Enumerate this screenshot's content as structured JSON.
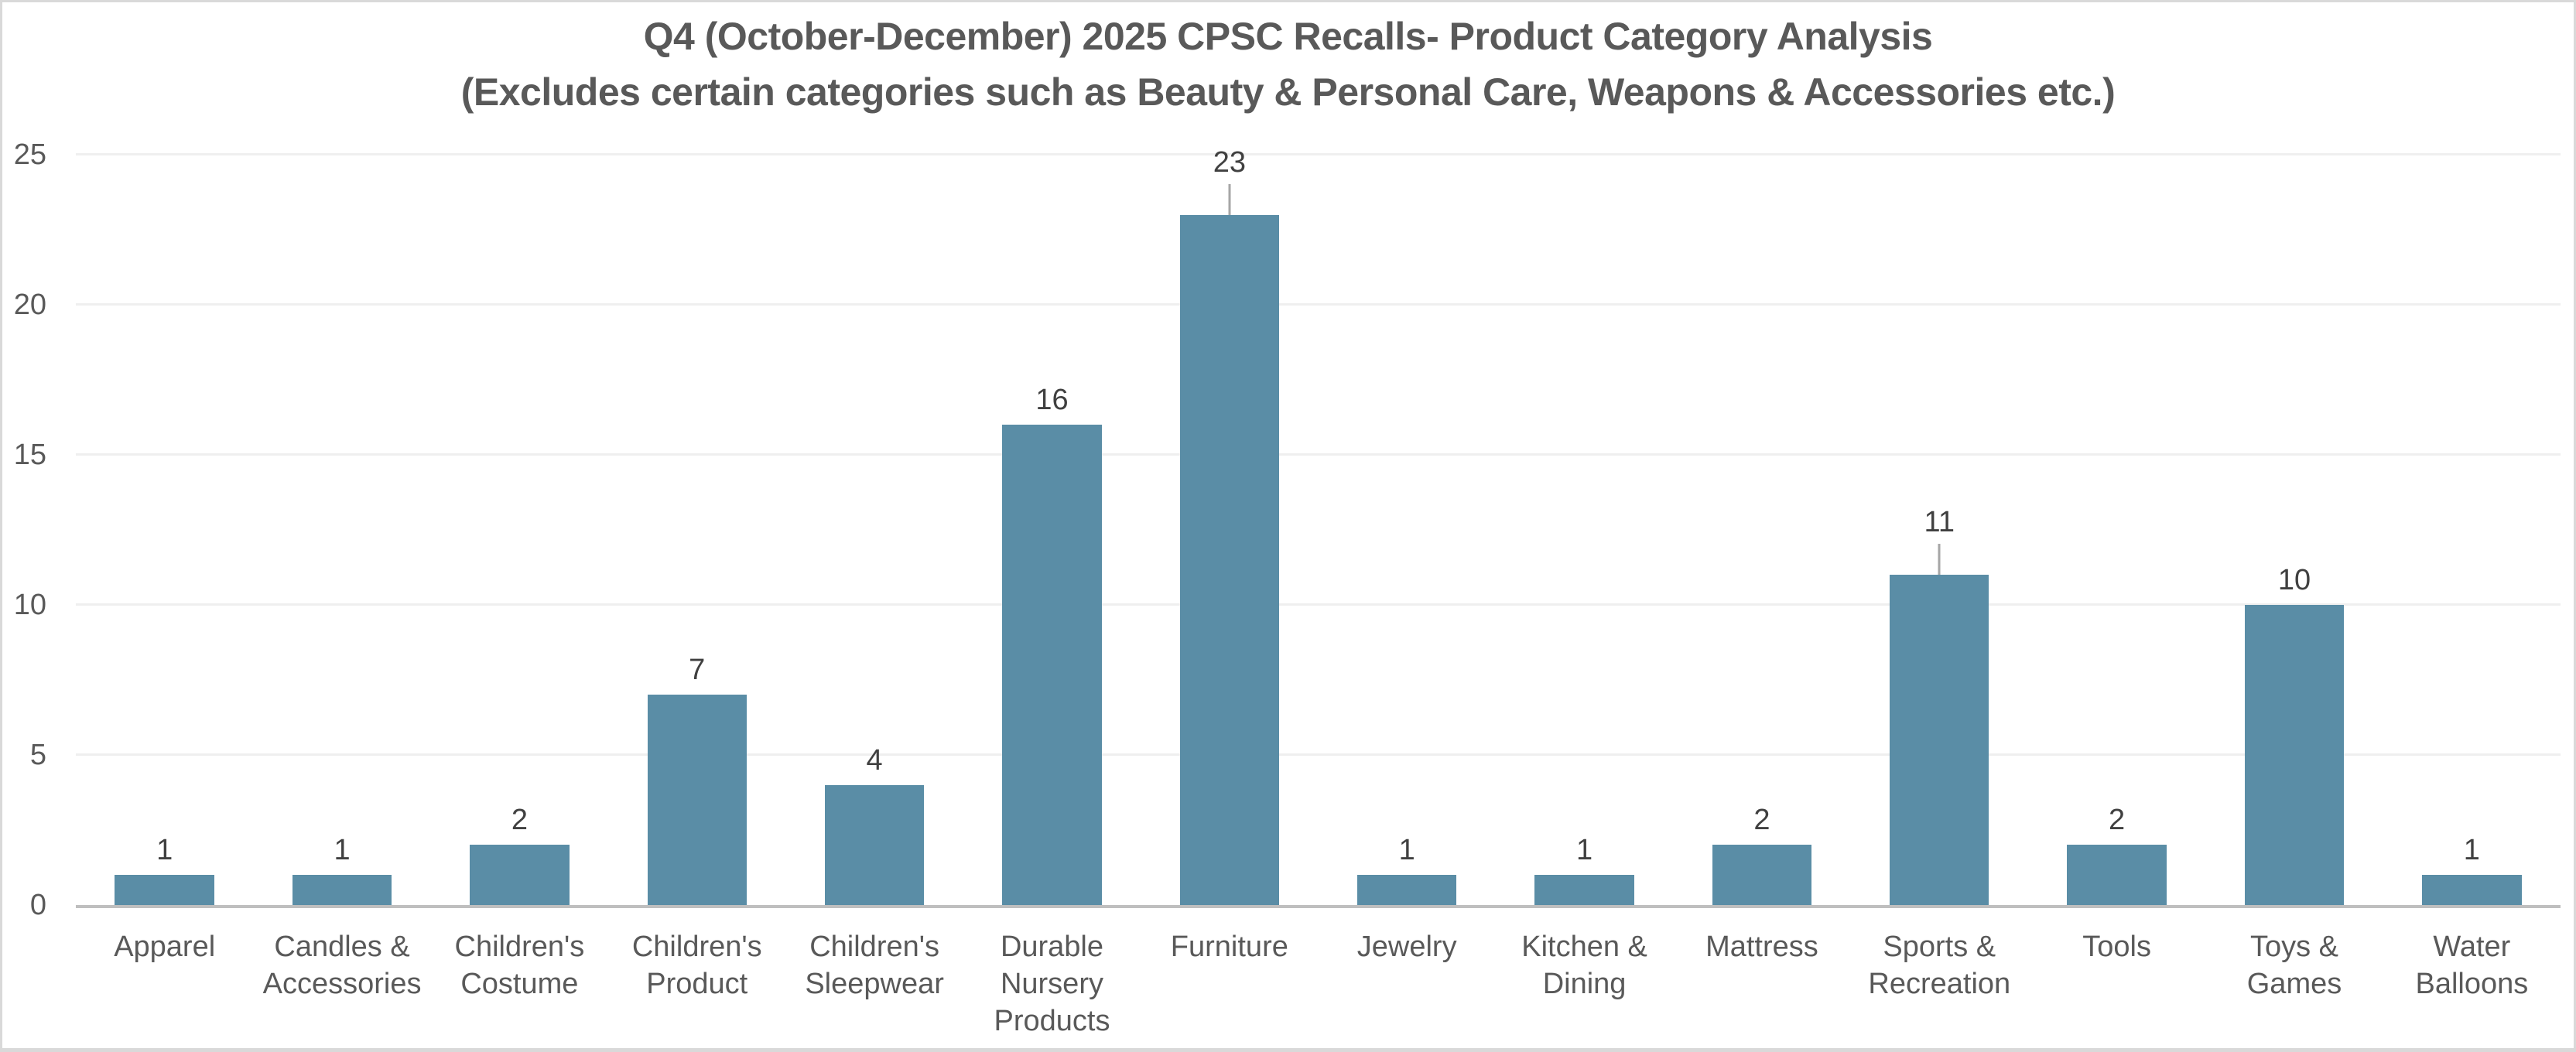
{
  "page": {
    "background": "#ffffff",
    "border_color": "#d9d9d9"
  },
  "chart_data": {
    "type": "bar",
    "title": "Q4 (October-December) 2025 CPSC Recalls- Product Category Analysis",
    "subtitle": "(Excludes certain categories such as Beauty & Personal Care, Weapons & Accessories etc.)",
    "categories": [
      "Apparel",
      "Candles &\nAccessories",
      "Children's\nCostume",
      "Children's\nProduct",
      "Children's\nSleepwear",
      "Durable\nNursery\nProducts",
      "Furniture",
      "Jewelry",
      "Kitchen &\nDining",
      "Mattress",
      "Sports &\nRecreation",
      "Tools",
      "Toys &\nGames",
      "Water\nBalloons"
    ],
    "values": [
      1,
      1,
      2,
      7,
      4,
      16,
      23,
      1,
      1,
      2,
      11,
      2,
      10,
      1
    ],
    "data_labels": [
      "1",
      "1",
      "2",
      "7",
      "4",
      "16",
      "23",
      "1",
      "1",
      "2",
      "11",
      "2",
      "10",
      "1"
    ],
    "leader_lines": [
      false,
      false,
      false,
      false,
      false,
      false,
      true,
      false,
      false,
      false,
      true,
      false,
      false,
      false
    ],
    "yticks": [
      0,
      5,
      10,
      15,
      20,
      25
    ],
    "ylim": [
      0,
      25
    ],
    "xlabel": "",
    "ylabel": "",
    "grid": true,
    "legend": "none",
    "bar_color": "#5a8da6",
    "gridline_color": "#efefef",
    "axis_line_color": "#bfbfbf",
    "leader_line_color": "#a6a6a6",
    "tick_label_color": "#595959",
    "category_label_color": "#595959",
    "data_label_color": "#404040",
    "title_color": "#595959"
  }
}
